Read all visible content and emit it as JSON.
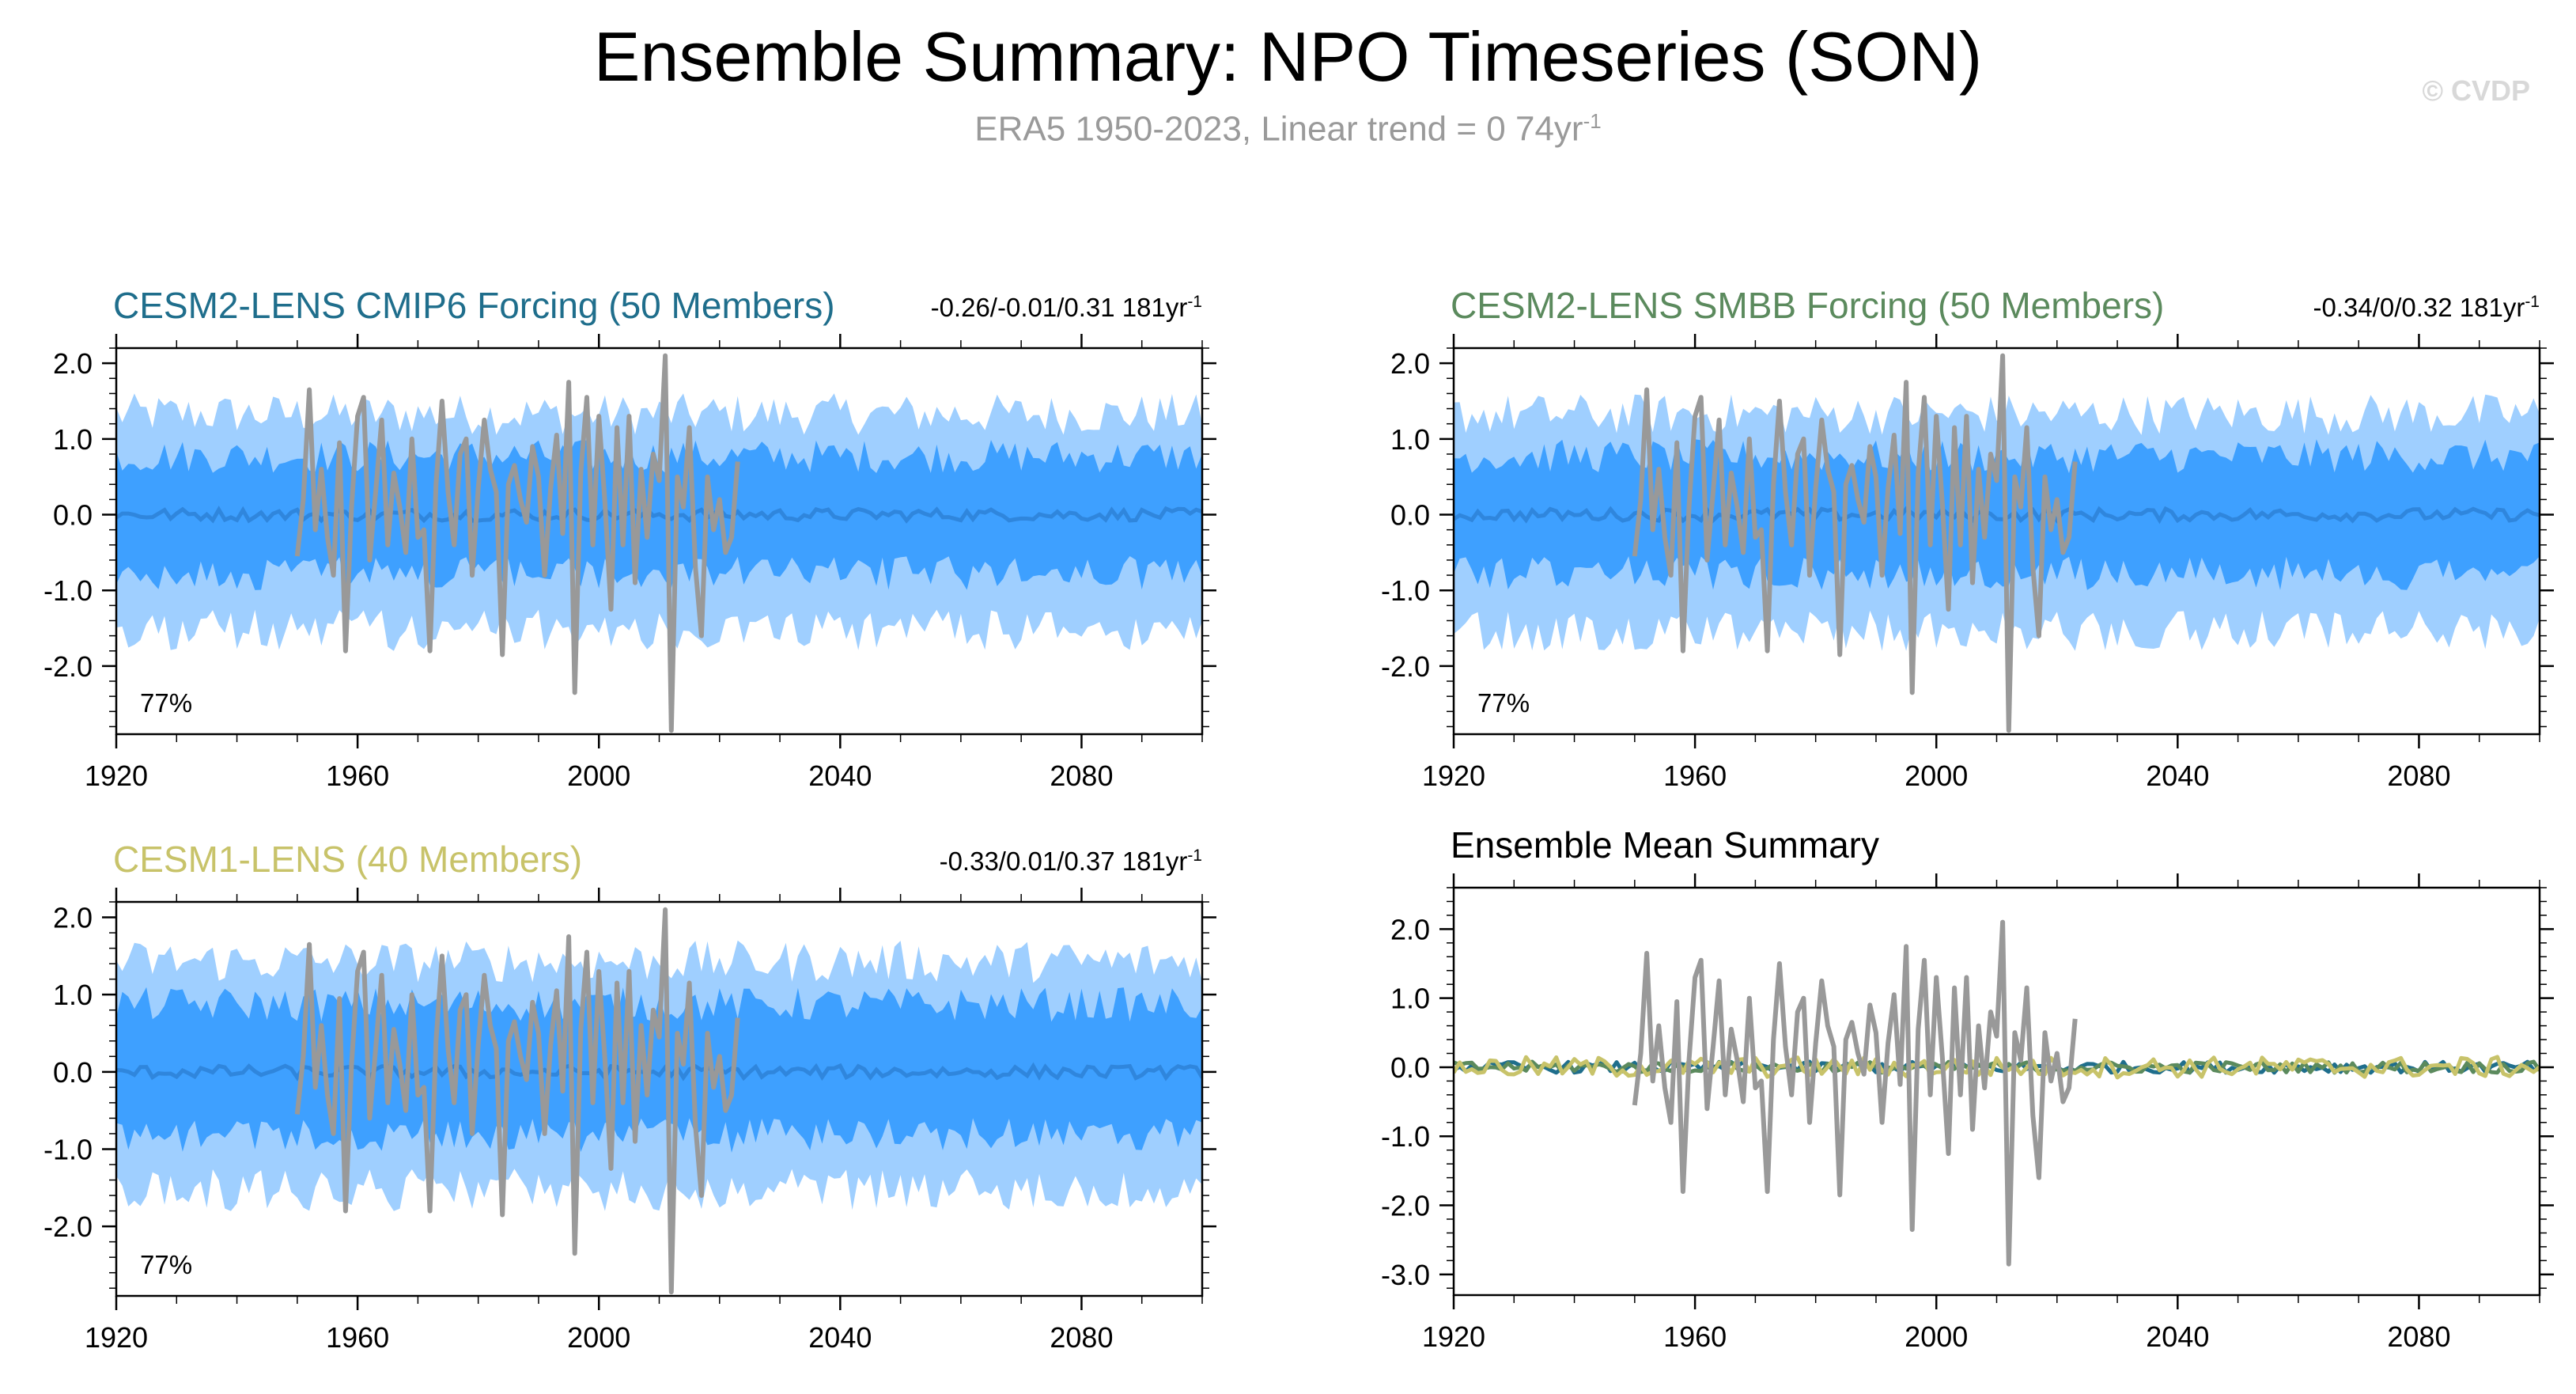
{
  "header": {
    "title": "Ensemble Summary: NPO Timeseries (SON)",
    "subtitle_text": "ERA5 1950-2023, Linear trend = 0 74yr",
    "subtitle_sup": "-1",
    "copyright": "© CVDP"
  },
  "colors": {
    "outer_band": "#9fcfff",
    "inner_band": "#3ea0ff",
    "ens_mean": "#2f86dd",
    "observations": "#999999",
    "cmip6_title": "#1f6e8c",
    "smbb_title": "#5b8a5d",
    "cesm1_title": "#c8c36a"
  },
  "chart_data": [
    {
      "type": "area",
      "title": "CESM2-LENS CMIP6 Forcing (50 Members)",
      "stats_text": "-0.26/-0.01/0.31 181yr",
      "stats_sup": "-1",
      "percent_label": "77%",
      "xlim": [
        1920,
        2100
      ],
      "ylim": [
        -2.9,
        2.2
      ],
      "xticks": [
        "1920",
        "1960",
        "2000",
        "2040",
        "2080"
      ],
      "yticks": [
        "2.0",
        "1.0",
        "0.0",
        "-1.0",
        "-2.0"
      ],
      "bands": [
        {
          "name": "outer",
          "lower_approx": -1.5,
          "upper_approx": 1.3
        },
        {
          "name": "inner",
          "lower_approx": -0.75,
          "upper_approx": 0.75
        }
      ],
      "ensemble_mean_approx": 0.0,
      "observations": {
        "x_start": 1950,
        "values": [
          -0.55,
          0.2,
          1.65,
          -0.2,
          0.6,
          -0.3,
          -0.8,
          0.95,
          -1.8,
          0.1,
          1.3,
          1.55,
          -0.6,
          0.3,
          1.25,
          -0.4,
          0.55,
          0.1,
          -0.5,
          1.0,
          -0.3,
          -0.2,
          -1.8,
          0.4,
          1.5,
          0.3,
          -0.4,
          0.8,
          1.0,
          -0.8,
          0.35,
          1.25,
          0.6,
          0.3,
          -1.85,
          0.4,
          0.65,
          0.2,
          -0.1,
          0.9,
          0.5,
          -0.8,
          0.35,
          1.05,
          -0.25,
          1.75,
          -2.35,
          0.55,
          1.55,
          -0.4,
          1.3,
          0.15,
          -1.25,
          1.15,
          -0.4,
          1.3,
          -0.9,
          0.6,
          -0.3,
          0.8,
          0.45,
          2.1,
          -2.85,
          0.5,
          0.1,
          1.15,
          -0.7,
          -1.6,
          0.5,
          -0.2,
          0.2,
          -0.5,
          -0.3,
          0.7
        ]
      }
    },
    {
      "type": "area",
      "title": "CESM2-LENS SMBB Forcing (50 Members)",
      "stats_text": "-0.34/0/0.32 181yr",
      "stats_sup": "-1",
      "percent_label": "77%",
      "xlim": [
        1920,
        2100
      ],
      "ylim": [
        -2.9,
        2.2
      ],
      "xticks": [
        "1920",
        "1960",
        "2000",
        "2040",
        "2080"
      ],
      "yticks": [
        "2.0",
        "1.0",
        "0.0",
        "-1.0",
        "-2.0"
      ],
      "bands": [
        {
          "name": "outer",
          "lower_approx": -1.5,
          "upper_approx": 1.3
        },
        {
          "name": "inner",
          "lower_approx": -0.75,
          "upper_approx": 0.75
        }
      ],
      "ensemble_mean_approx": 0.0,
      "observations": {
        "x_start": 1950,
        "values": [
          -0.55,
          0.2,
          1.65,
          -0.2,
          0.6,
          -0.3,
          -0.8,
          0.95,
          -1.8,
          0.1,
          1.3,
          1.55,
          -0.6,
          0.3,
          1.25,
          -0.4,
          0.55,
          0.1,
          -0.5,
          1.0,
          -0.3,
          -0.2,
          -1.8,
          0.4,
          1.5,
          0.3,
          -0.4,
          0.8,
          1.0,
          -0.8,
          0.35,
          1.25,
          0.6,
          0.3,
          -1.85,
          0.4,
          0.65,
          0.2,
          -0.1,
          0.9,
          0.5,
          -0.8,
          0.35,
          1.05,
          -0.25,
          1.75,
          -2.35,
          0.55,
          1.55,
          -0.4,
          1.3,
          0.15,
          -1.25,
          1.15,
          -0.4,
          1.3,
          -0.9,
          0.6,
          -0.3,
          0.8,
          0.45,
          2.1,
          -2.85,
          0.5,
          0.1,
          1.15,
          -0.7,
          -1.6,
          0.5,
          -0.2,
          0.2,
          -0.5,
          -0.3,
          0.7
        ]
      }
    },
    {
      "type": "area",
      "title": "CESM1-LENS (40 Members)",
      "stats_text": "-0.33/0.01/0.37 181yr",
      "stats_sup": "-1",
      "percent_label": "77%",
      "xlim": [
        1920,
        2100
      ],
      "ylim": [
        -2.9,
        2.2
      ],
      "xticks": [
        "1920",
        "1960",
        "2000",
        "2040",
        "2080"
      ],
      "yticks": [
        "2.0",
        "1.0",
        "0.0",
        "-1.0",
        "-2.0"
      ],
      "bands": [
        {
          "name": "outer",
          "lower_approx": -1.5,
          "upper_approx": 1.4
        },
        {
          "name": "inner",
          "lower_approx": -0.8,
          "upper_approx": 0.85
        }
      ],
      "ensemble_mean_approx": 0.0,
      "observations": {
        "x_start": 1950,
        "values": [
          -0.55,
          0.2,
          1.65,
          -0.2,
          0.6,
          -0.3,
          -0.8,
          0.95,
          -1.8,
          0.1,
          1.3,
          1.55,
          -0.6,
          0.3,
          1.25,
          -0.4,
          0.55,
          0.1,
          -0.5,
          1.0,
          -0.3,
          -0.2,
          -1.8,
          0.4,
          1.5,
          0.3,
          -0.4,
          0.8,
          1.0,
          -0.8,
          0.35,
          1.25,
          0.6,
          0.3,
          -1.85,
          0.4,
          0.65,
          0.2,
          -0.1,
          0.9,
          0.5,
          -0.8,
          0.35,
          1.05,
          -0.25,
          1.75,
          -2.35,
          0.55,
          1.55,
          -0.4,
          1.3,
          0.15,
          -1.25,
          1.15,
          -0.4,
          1.3,
          -0.9,
          0.6,
          -0.3,
          0.8,
          0.45,
          2.1,
          -2.85,
          0.5,
          0.1,
          1.15,
          -0.7,
          -1.6,
          0.5,
          -0.2,
          0.2,
          -0.5,
          -0.3,
          0.7
        ]
      }
    },
    {
      "type": "line",
      "title": "Ensemble Mean Summary",
      "xlim": [
        1920,
        2100
      ],
      "ylim": [
        -3.3,
        2.6
      ],
      "xticks": [
        "1920",
        "1960",
        "2000",
        "2040",
        "2080"
      ],
      "yticks": [
        "2.0",
        "1.0",
        "0.0",
        "-1.0",
        "-2.0",
        "-3.0"
      ],
      "series": [
        {
          "color": "#999999",
          "x_start": 1950,
          "values": [
            -0.55,
            0.2,
            1.65,
            -0.2,
            0.6,
            -0.3,
            -0.8,
            0.95,
            -1.8,
            0.1,
            1.3,
            1.55,
            -0.6,
            0.3,
            1.25,
            -0.4,
            0.55,
            0.1,
            -0.5,
            1.0,
            -0.3,
            -0.2,
            -1.8,
            0.4,
            1.5,
            0.3,
            -0.4,
            0.8,
            1.0,
            -0.8,
            0.35,
            1.25,
            0.6,
            0.3,
            -1.85,
            0.4,
            0.65,
            0.2,
            -0.1,
            0.9,
            0.5,
            -0.8,
            0.35,
            1.05,
            -0.25,
            1.75,
            -2.35,
            0.55,
            1.55,
            -0.4,
            1.3,
            0.15,
            -1.25,
            1.15,
            -0.4,
            1.3,
            -0.9,
            0.6,
            -0.3,
            0.8,
            0.45,
            2.1,
            -2.85,
            0.5,
            0.1,
            1.15,
            -0.7,
            -1.6,
            0.5,
            -0.2,
            0.2,
            -0.5,
            -0.3,
            0.7
          ]
        },
        {
          "color": "#1f6e8c",
          "x_start": 1920,
          "amplitude_approx": 0.08
        },
        {
          "color": "#5b8a5d",
          "x_start": 1920,
          "amplitude_approx": 0.08
        },
        {
          "color": "#c8c36a",
          "x_start": 1920,
          "amplitude_approx": 0.15
        }
      ]
    }
  ]
}
